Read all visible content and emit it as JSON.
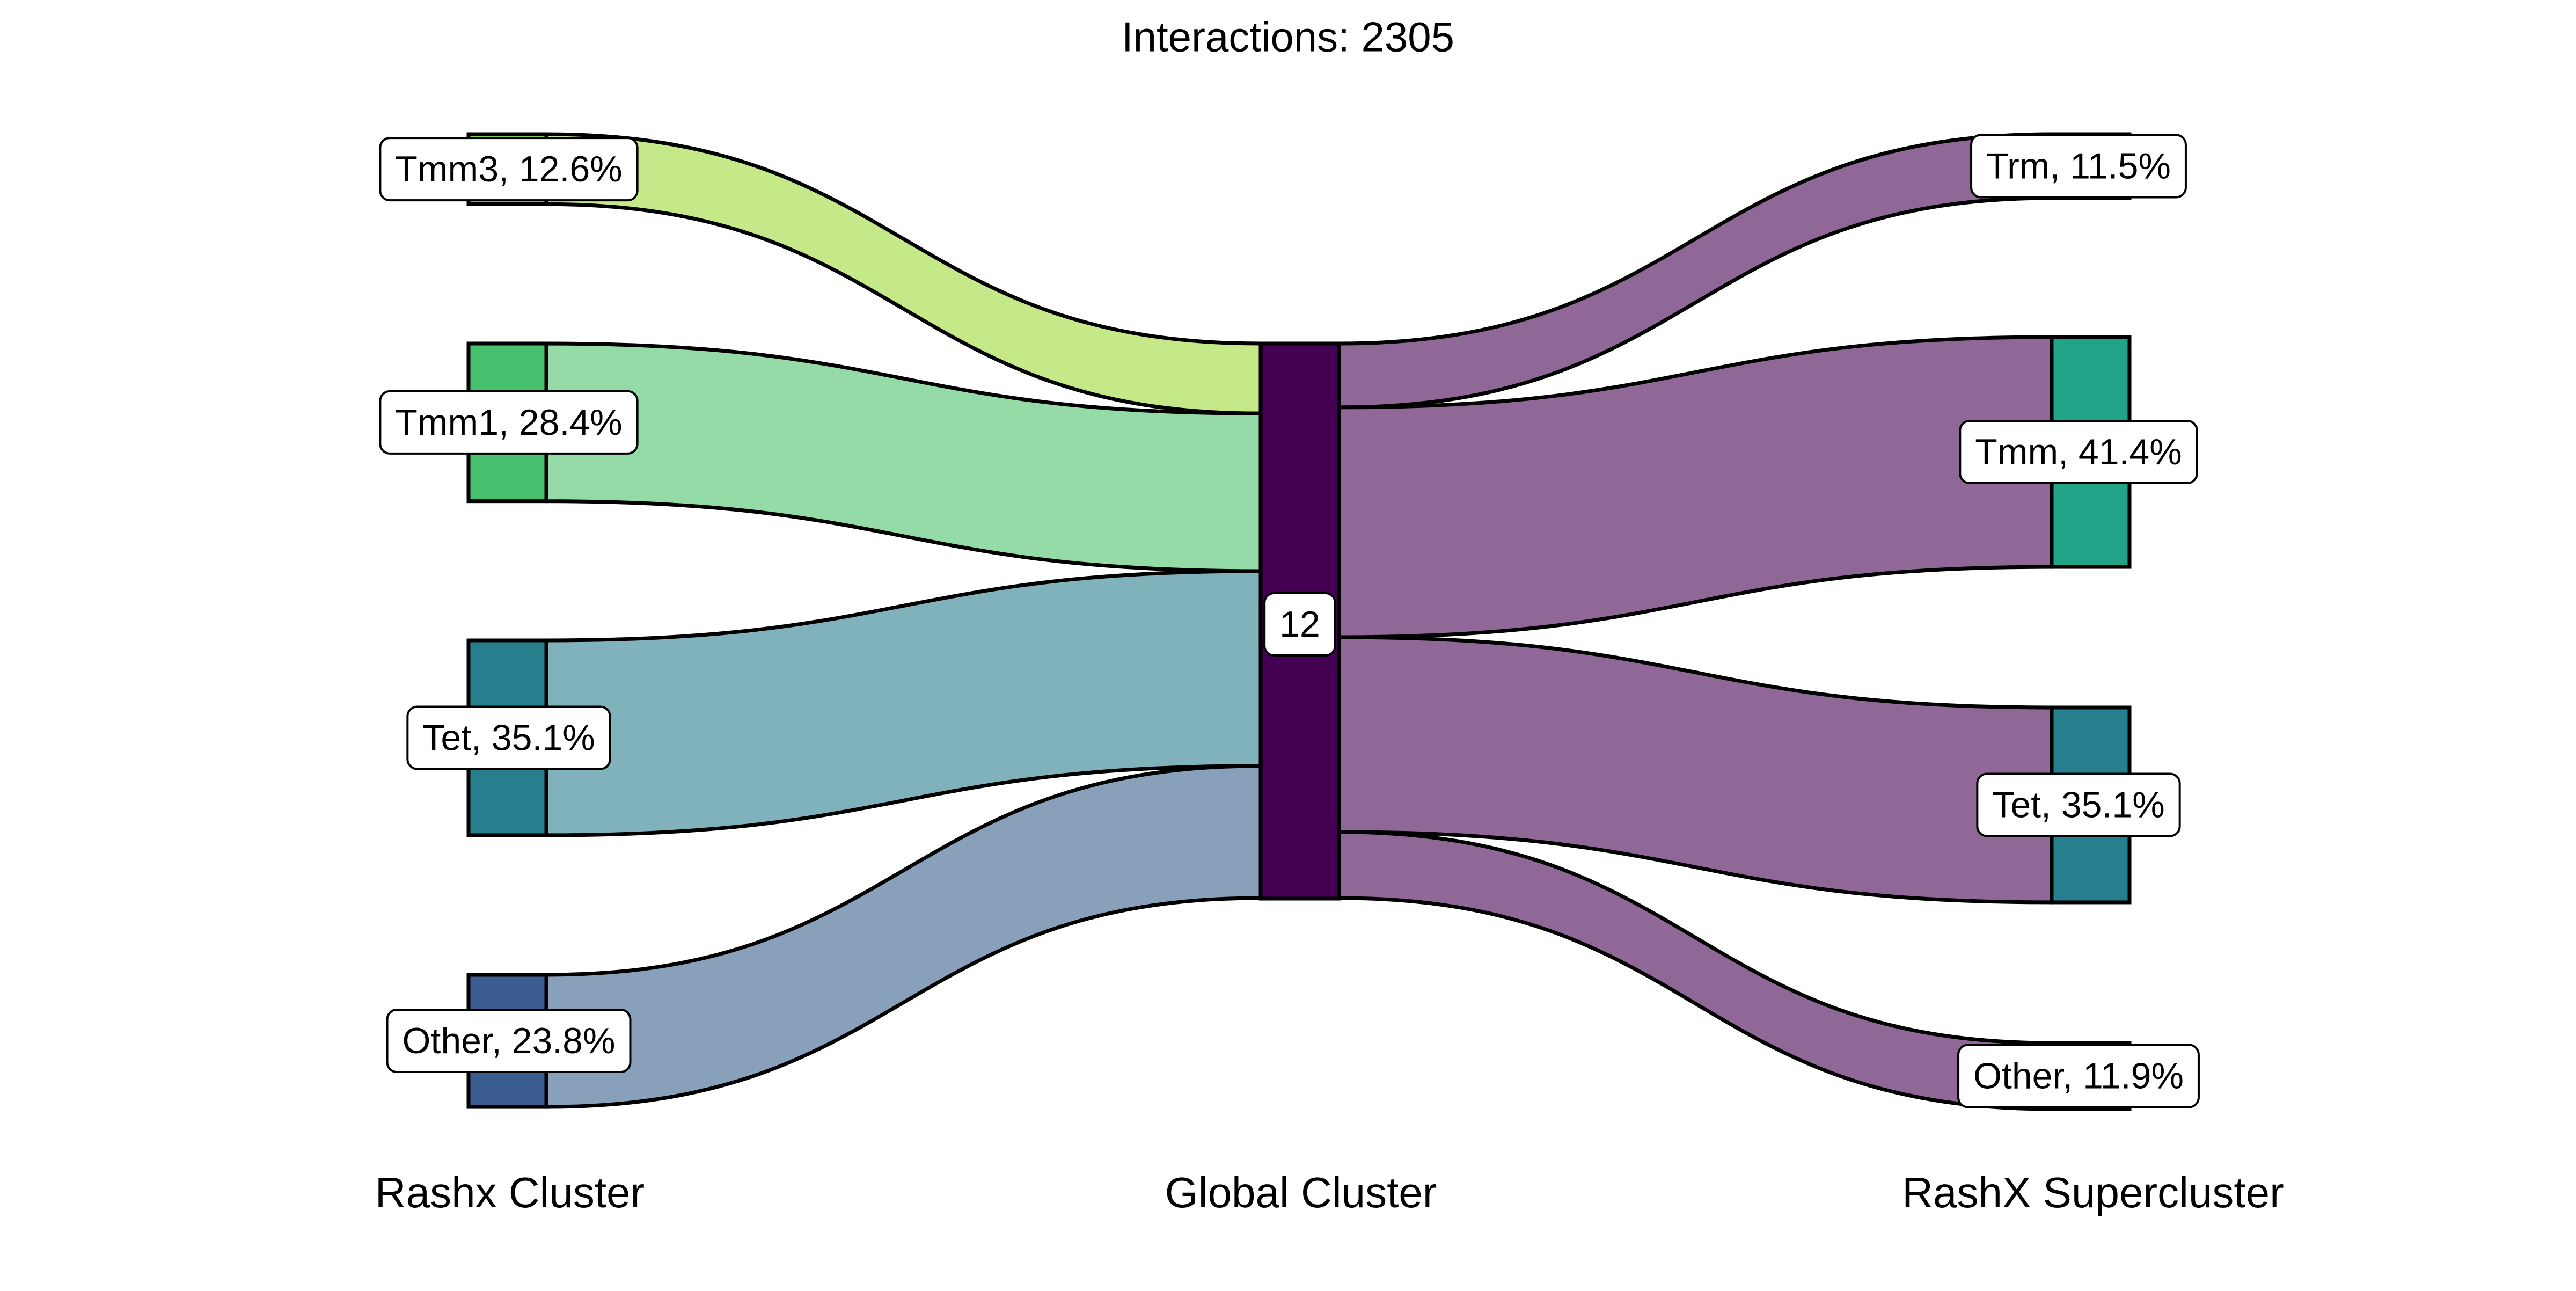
{
  "title": "Interactions: 2305",
  "axis_labels": {
    "left": "Rashx Cluster",
    "middle": "Global Cluster",
    "right": "RashX Supercluster"
  },
  "chart_data": {
    "type": "sankey",
    "title": "Interactions: 2305",
    "total": 2305,
    "axes": [
      "Rashx Cluster",
      "Global Cluster",
      "RashX Supercluster"
    ],
    "left_nodes": [
      {
        "name": "Tmm3",
        "label": "Tmm3, 12.6%",
        "percent": 12.6,
        "color": "#7fd34e"
      },
      {
        "name": "Tmm1",
        "label": "Tmm1, 28.4%",
        "percent": 28.4,
        "color": "#48c16e"
      },
      {
        "name": "Tet",
        "label": "Tet, 35.1%",
        "percent": 35.1,
        "color": "#277f8e"
      },
      {
        "name": "Other",
        "label": "Other, 23.8%",
        "percent": 23.8,
        "color": "#3b5c8e"
      }
    ],
    "middle_nodes": [
      {
        "name": "12",
        "label": "12",
        "percent": 100,
        "color": "#440154"
      }
    ],
    "right_nodes": [
      {
        "name": "Trm",
        "label": "Trm, 11.5%",
        "percent": 11.5,
        "color": "#fde725"
      },
      {
        "name": "Tmm",
        "label": "Tmm, 41.4%",
        "percent": 41.4,
        "color": "#21a387"
      },
      {
        "name": "Tet",
        "label": "Tet, 35.1%",
        "percent": 35.1,
        "color": "#277f8e"
      },
      {
        "name": "Other",
        "label": "Other, 11.9%",
        "percent": 11.9,
        "color": "#3b5c8e"
      }
    ],
    "left_flow_colors": [
      "#c5e989",
      "#94dba8",
      "#7fb2bb",
      "#89a0bb"
    ],
    "right_flow_color": "#8f6898"
  }
}
